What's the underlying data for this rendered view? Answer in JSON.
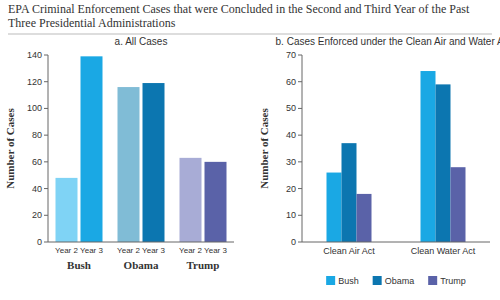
{
  "title": "EPA Criminal Enforcement Cases that were Concluded in the Second and Third Year of the Past Three Presidential Administrations",
  "chart_data": [
    {
      "type": "bar",
      "title": "a. All Cases",
      "y_label": "Number of Cases",
      "categories": [
        "Year 2",
        "Year 3"
      ],
      "series": [
        {
          "name": "Bush",
          "colors": [
            "#7fd3f5",
            "#1aa8e4"
          ],
          "values": [
            48,
            139
          ]
        },
        {
          "name": "Obama",
          "colors": [
            "#80bcd6",
            "#0c76b0"
          ],
          "values": [
            116,
            119
          ]
        },
        {
          "name": "Trump",
          "colors": [
            "#a8acd6",
            "#5a62a8"
          ],
          "values": [
            63,
            60
          ]
        }
      ],
      "ylim": [
        0,
        140
      ],
      "yticks": [
        0,
        20,
        40,
        60,
        80,
        100,
        120,
        140
      ],
      "grid": false
    },
    {
      "type": "bar",
      "title": "b. Cases Enforced under the Clean Air and Water Acts",
      "y_label": "Number of Cases",
      "categories": [
        "Clean Air Act",
        "Clean Water Act"
      ],
      "series": [
        {
          "name": "Bush",
          "color": "#1aa8e4",
          "values": [
            26,
            64
          ]
        },
        {
          "name": "Obama",
          "color": "#0c76b0",
          "values": [
            37,
            59
          ]
        },
        {
          "name": "Trump",
          "color": "#5a62a8",
          "values": [
            18,
            28
          ]
        }
      ],
      "ylim": [
        0,
        70
      ],
      "yticks": [
        0,
        10,
        20,
        30,
        40,
        50,
        60,
        70
      ],
      "grid": false,
      "legend": "bottom"
    }
  ]
}
